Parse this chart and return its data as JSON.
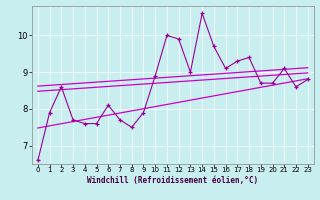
{
  "xlabel": "Windchill (Refroidissement éolien,°C)",
  "bg_color": "#c8eef0",
  "line_color": "#990099",
  "trend_color": "#cc00cc",
  "x_data": [
    0,
    1,
    2,
    3,
    4,
    5,
    6,
    7,
    8,
    9,
    10,
    11,
    12,
    13,
    14,
    15,
    16,
    17,
    18,
    19,
    20,
    21,
    22,
    23
  ],
  "y_data": [
    6.6,
    7.9,
    8.6,
    7.7,
    7.6,
    7.6,
    8.1,
    7.7,
    7.5,
    7.9,
    8.9,
    10.0,
    9.9,
    9.0,
    10.6,
    9.7,
    9.1,
    9.3,
    9.4,
    8.7,
    8.7,
    9.1,
    8.6,
    8.8
  ],
  "ylim": [
    6.5,
    10.8
  ],
  "yticks": [
    7,
    8,
    9,
    10
  ],
  "xticks": [
    0,
    1,
    2,
    3,
    4,
    5,
    6,
    7,
    8,
    9,
    10,
    11,
    12,
    13,
    14,
    15,
    16,
    17,
    18,
    19,
    20,
    21,
    22,
    23
  ],
  "trend_upper_start": 8.62,
  "trend_upper_end": 9.12,
  "trend_mid_start": 8.48,
  "trend_mid_end": 8.98,
  "trend_lower_start": 7.48,
  "trend_lower_end": 8.82,
  "grid_color": "#aadddd",
  "spine_color": "#888888"
}
